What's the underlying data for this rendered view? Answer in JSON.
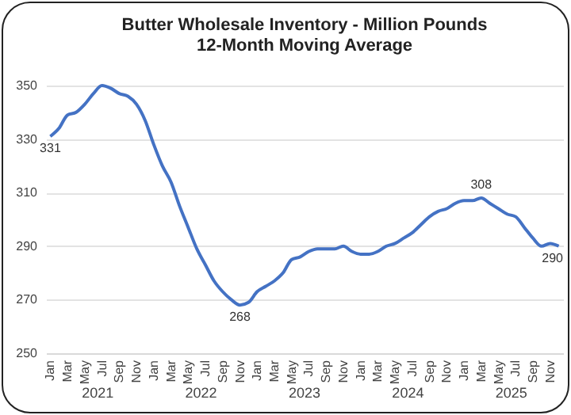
{
  "chart_data": {
    "type": "line",
    "title": "Butter Wholesale Inventory - Million Pounds",
    "subtitle": "12-Month Moving Average",
    "categories": [
      "Jan",
      null,
      "Mar",
      null,
      "May",
      null,
      "Jul",
      null,
      "Sep",
      null,
      "Nov",
      null,
      "Jan",
      null,
      "Mar",
      null,
      "May",
      null,
      "Jul",
      null,
      "Sep",
      null,
      "Nov",
      null,
      "Jan",
      null,
      "Mar",
      null,
      "May",
      null,
      "Jul",
      null,
      "Sep",
      null,
      "Nov",
      null,
      "Jan",
      null,
      "Mar",
      null,
      "May",
      null,
      "Jul",
      null,
      "Sep",
      null,
      "Nov",
      null,
      "Jan",
      null,
      "Mar",
      null,
      "May",
      null,
      "Jul",
      null,
      "Sep",
      null,
      "Nov",
      null
    ],
    "series": [
      {
        "color": "#4472c4",
        "values": [
          331,
          334,
          339,
          340,
          343,
          347,
          350,
          349,
          347,
          346,
          343,
          337,
          328,
          320,
          314,
          305,
          297,
          289,
          283,
          277,
          273,
          270,
          268,
          269,
          273,
          275,
          277,
          280,
          285,
          286,
          288,
          289,
          289,
          289,
          290,
          288,
          287,
          287,
          288,
          290,
          291,
          293,
          295,
          298,
          301,
          303,
          304,
          306,
          307,
          307,
          308,
          306,
          304,
          302,
          301,
          297,
          293,
          290,
          291,
          290
        ],
        "value_labels": [
          "331",
          null,
          null,
          null,
          null,
          null,
          null,
          null,
          null,
          null,
          null,
          null,
          null,
          null,
          null,
          null,
          null,
          null,
          null,
          null,
          null,
          null,
          "268",
          null,
          null,
          null,
          null,
          null,
          null,
          null,
          null,
          null,
          null,
          null,
          null,
          null,
          null,
          null,
          null,
          null,
          null,
          null,
          null,
          null,
          null,
          null,
          null,
          null,
          null,
          null,
          "308",
          null,
          null,
          null,
          null,
          null,
          null,
          null,
          null,
          "290"
        ]
      }
    ],
    "ylim": [
      250,
      350
    ],
    "yticks": [
      250,
      270,
      290,
      310,
      330,
      350
    ],
    "grid": "y",
    "annotations": [
      "2021",
      "2022",
      "2023",
      "2024",
      "2025"
    ]
  }
}
